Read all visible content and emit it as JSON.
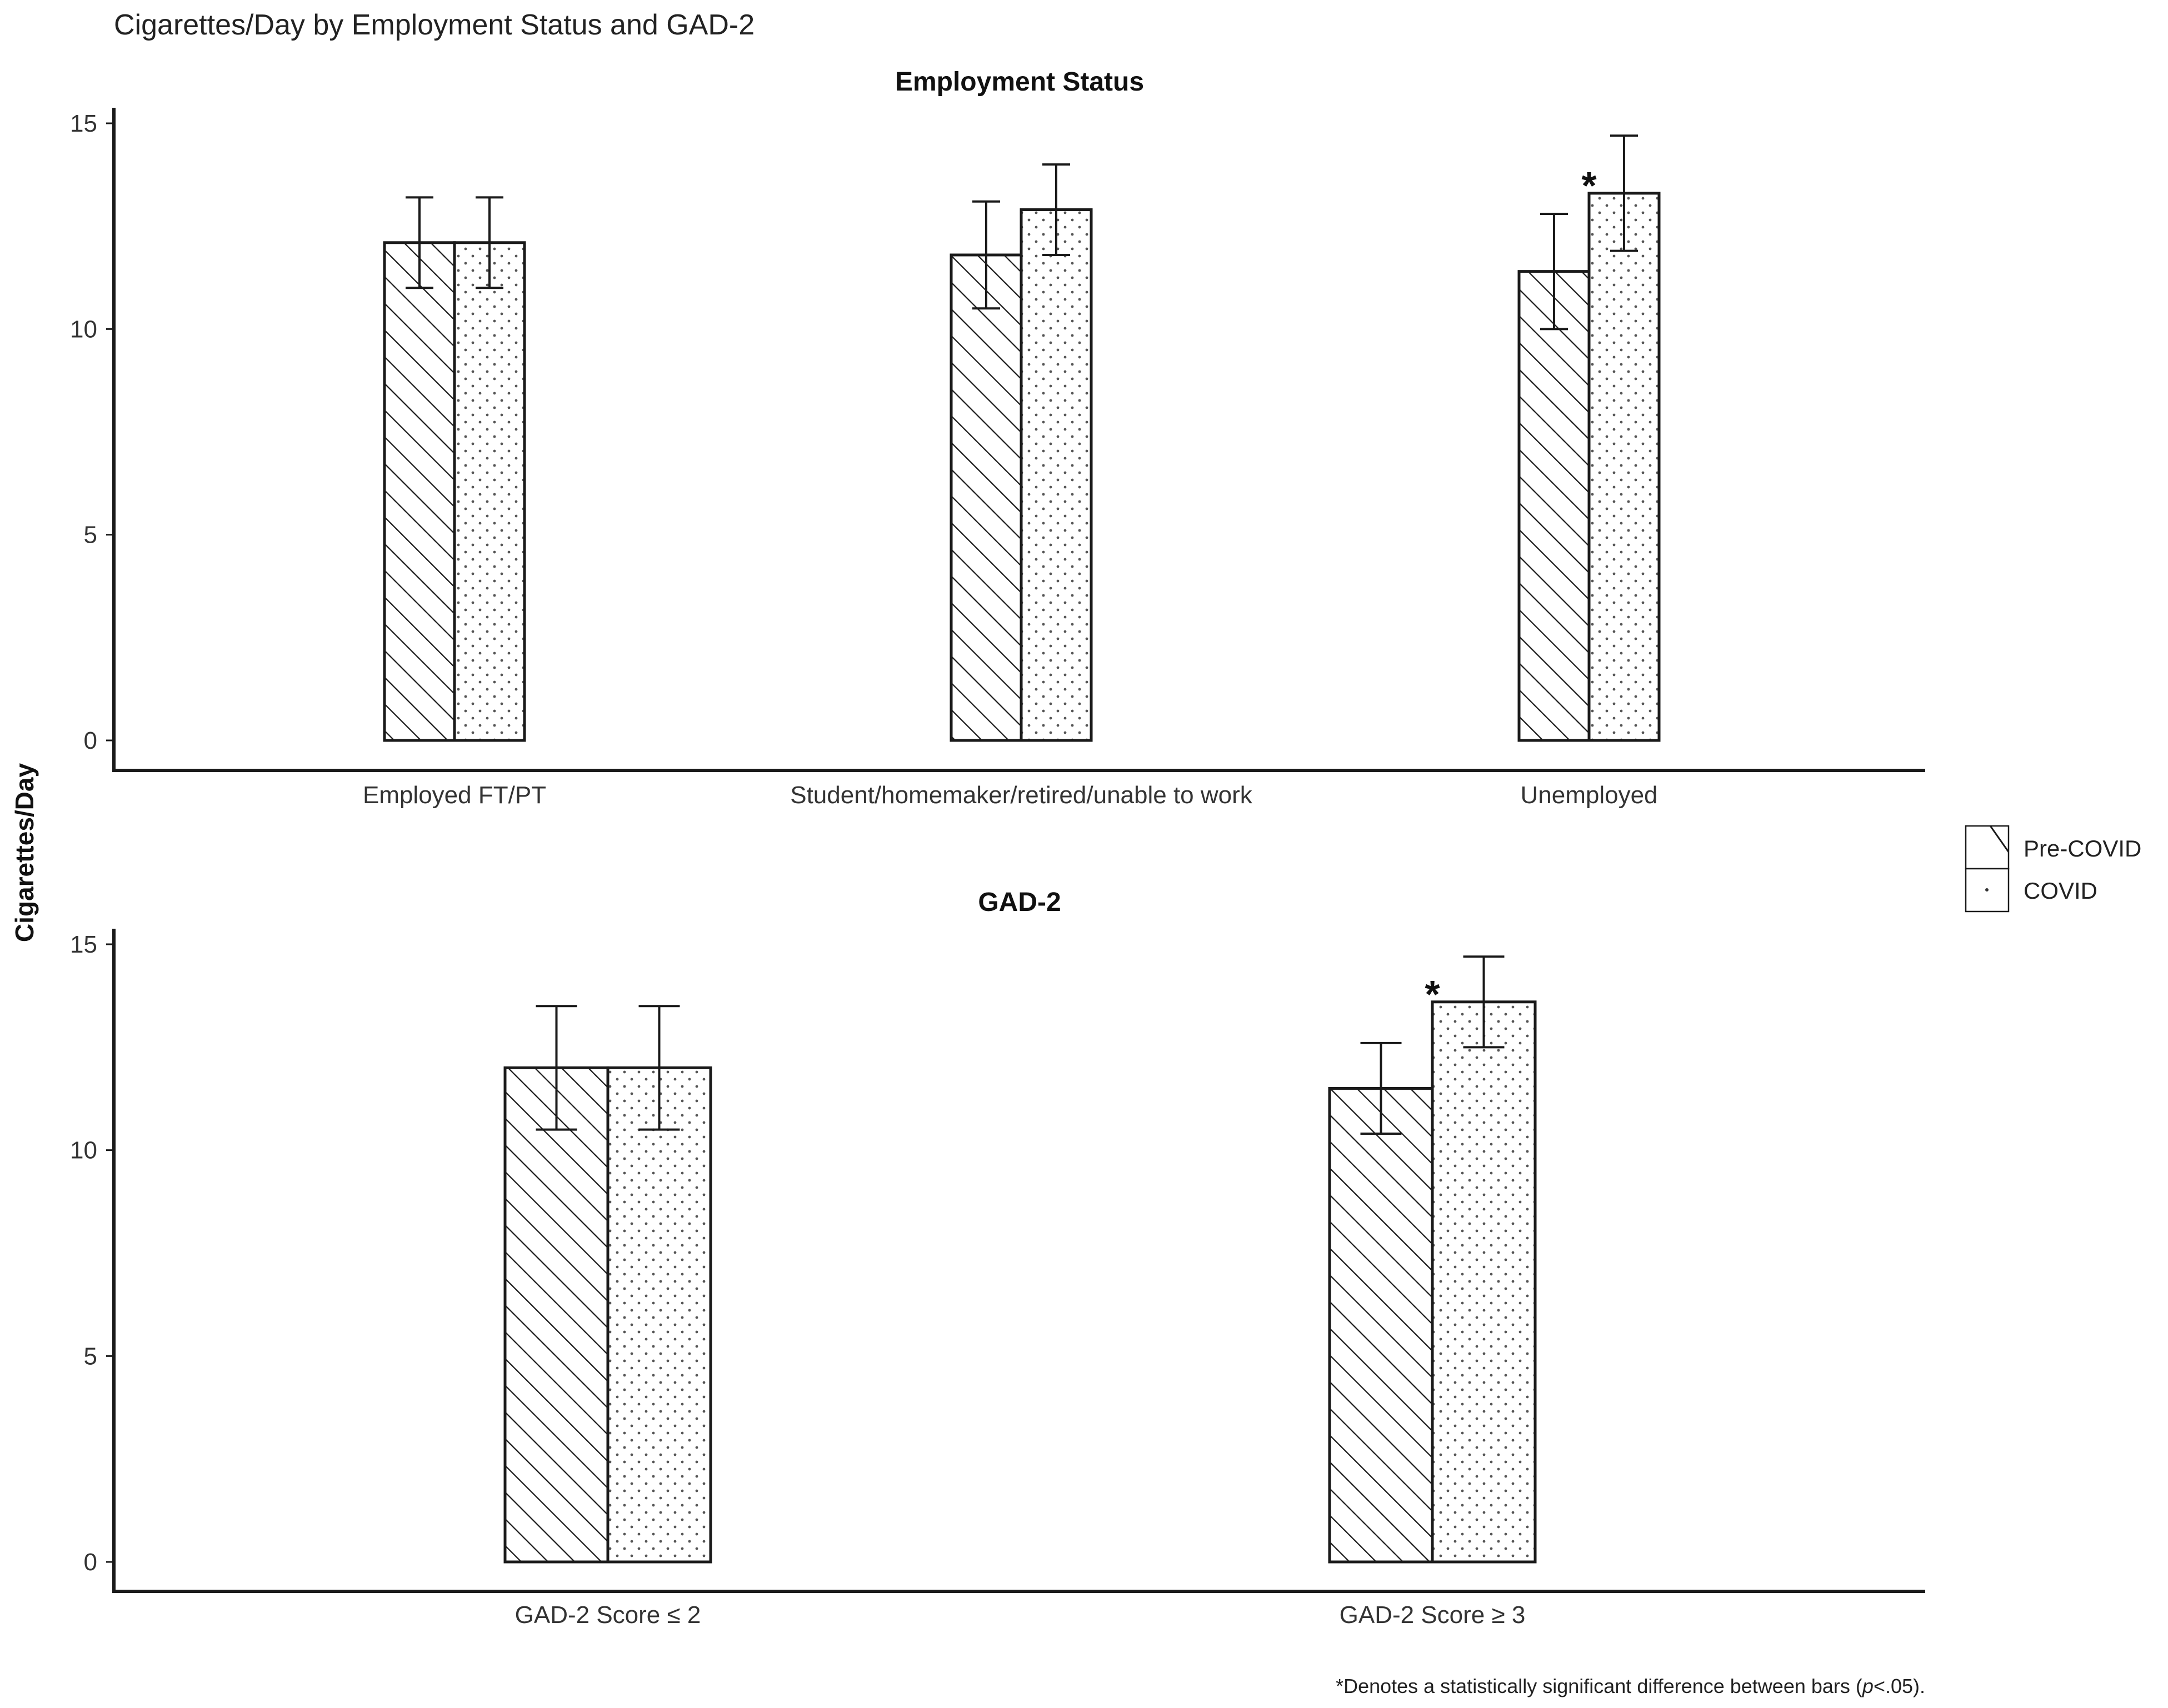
{
  "figure_title": "Cigarettes/Day by Employment Status and GAD-2",
  "y_axis_title": "Cigarettes/Day",
  "footnote": {
    "prefix": "*Denotes a statistically significant difference between bars (",
    "italic": "p",
    "suffix": "<.05)."
  },
  "legend": [
    {
      "label": "Pre-COVID",
      "pattern": "hatch"
    },
    {
      "label": "COVID",
      "pattern": "dots"
    }
  ],
  "colors": {
    "ink": "#1a1a1a",
    "text": "#333333",
    "background": "#ffffff"
  },
  "chart_data": [
    {
      "type": "bar",
      "title": "Employment Status",
      "categories": [
        "Employed FT/PT",
        "Student/homemaker/retired/unable to work",
        "Unemployed"
      ],
      "series": [
        {
          "name": "Pre-COVID",
          "values": [
            12.1,
            11.8,
            11.4
          ],
          "error_low": [
            11.0,
            10.5,
            10.0
          ],
          "error_high": [
            13.2,
            13.1,
            12.8
          ]
        },
        {
          "name": "COVID",
          "values": [
            12.1,
            12.9,
            13.3
          ],
          "error_low": [
            11.0,
            11.8,
            11.9
          ],
          "error_high": [
            13.2,
            14.0,
            14.7
          ]
        }
      ],
      "significance": [
        {
          "category": "Unemployed",
          "label": "*"
        }
      ],
      "yticks": [
        0,
        5,
        10,
        15
      ],
      "ylim": [
        0,
        15
      ],
      "grid": false
    },
    {
      "type": "bar",
      "title": "GAD-2",
      "categories": [
        "GAD-2 Score ≤ 2",
        "GAD-2 Score ≥ 3"
      ],
      "series": [
        {
          "name": "Pre-COVID",
          "values": [
            12.0,
            11.5
          ],
          "error_low": [
            10.5,
            10.4
          ],
          "error_high": [
            13.5,
            12.6
          ]
        },
        {
          "name": "COVID",
          "values": [
            12.0,
            13.6
          ],
          "error_low": [
            10.5,
            12.5
          ],
          "error_high": [
            13.5,
            14.7
          ]
        }
      ],
      "significance": [
        {
          "category": "GAD-2 Score ≥ 3",
          "label": "*"
        }
      ],
      "yticks": [
        0,
        5,
        10,
        15
      ],
      "ylim": [
        0,
        15
      ],
      "grid": false
    }
  ]
}
